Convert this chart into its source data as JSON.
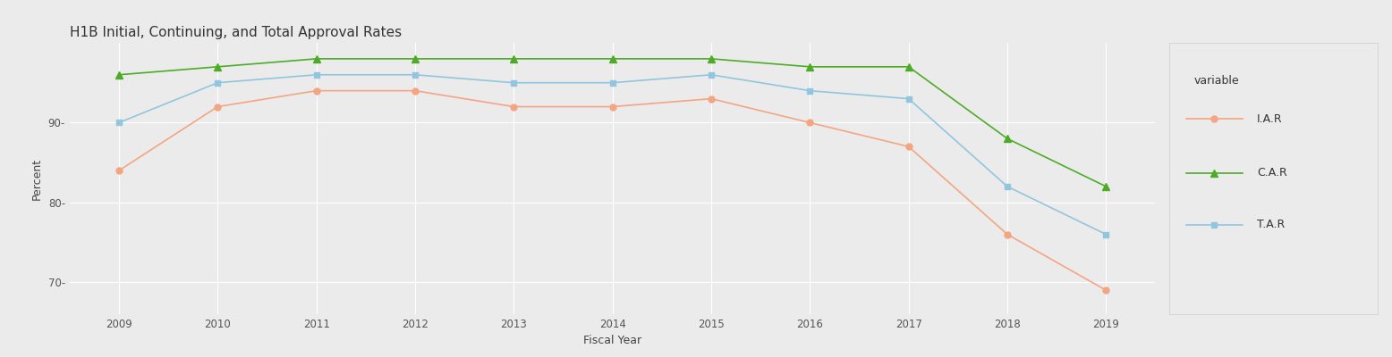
{
  "title": "H1B Initial, Continuing, and Total Approval Rates",
  "xlabel": "Fiscal Year",
  "ylabel": "Percent",
  "years": [
    2009,
    2010,
    2011,
    2012,
    2013,
    2014,
    2015,
    2016,
    2017,
    2018,
    2019
  ],
  "IAR": [
    84,
    92,
    94,
    94,
    92,
    92,
    93,
    90,
    87,
    76,
    69
  ],
  "CAR": [
    96,
    97,
    98,
    98,
    98,
    98,
    98,
    97,
    97,
    88,
    82
  ],
  "TAR": [
    90,
    95,
    96,
    96,
    95,
    95,
    96,
    94,
    93,
    82,
    76
  ],
  "color_IAR": "#F4A582",
  "color_CAR": "#4DAC26",
  "color_TAR": "#92C5DE",
  "background_color": "#EBEBEB",
  "panel_background": "#EBEBEB",
  "grid_color": "#FFFFFF",
  "ylim_min": 66,
  "ylim_max": 100,
  "yticks": [
    70,
    80,
    90
  ],
  "legend_title": "variable",
  "legend_labels": [
    "I.A.R",
    "C.A.R",
    "T.A.R"
  ],
  "title_fontsize": 11,
  "axis_label_fontsize": 9,
  "tick_fontsize": 8.5,
  "legend_fontsize": 9
}
